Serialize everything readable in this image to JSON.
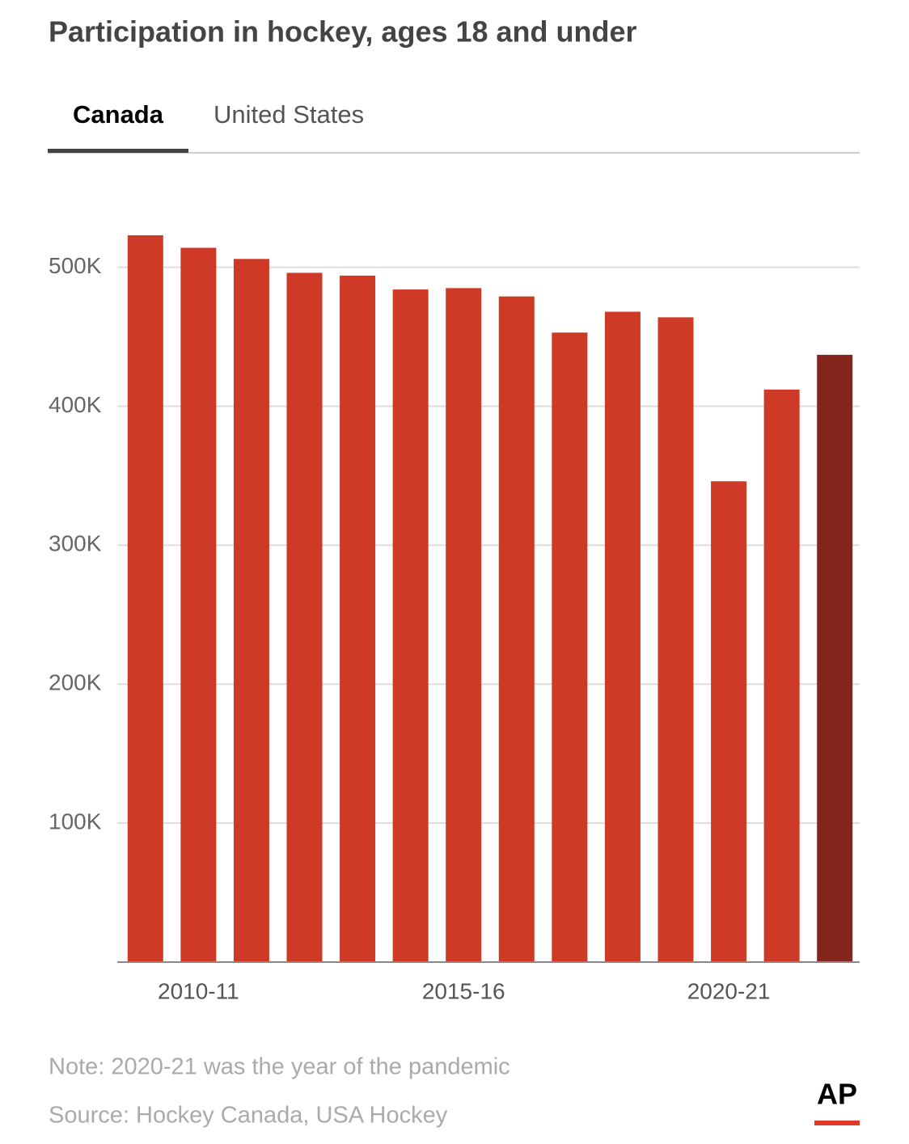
{
  "chart_data": {
    "type": "bar",
    "title": "Participation in hockey, ages 18 and under",
    "tabs": [
      "Canada",
      "United States"
    ],
    "active_tab": 0,
    "categories": [
      null,
      "2010-11",
      null,
      null,
      null,
      null,
      "2015-16",
      null,
      null,
      null,
      null,
      "2020-21",
      null,
      null
    ],
    "values": [
      523000,
      514000,
      506000,
      496000,
      494000,
      484000,
      485000,
      479000,
      453000,
      468000,
      464000,
      346000,
      412000,
      437000
    ],
    "colors": [
      "#cf3a27",
      "#cf3a27",
      "#cf3a27",
      "#cf3a27",
      "#cf3a27",
      "#cf3a27",
      "#cf3a27",
      "#cf3a27",
      "#cf3a27",
      "#cf3a27",
      "#cf3a27",
      "#cf3a27",
      "#cf3a27",
      "#85261e"
    ],
    "ylim": [
      0,
      530000
    ],
    "yticks": [
      {
        "value": 100000,
        "label": "100K"
      },
      {
        "value": 200000,
        "label": "200K"
      },
      {
        "value": 300000,
        "label": "300K"
      },
      {
        "value": 400000,
        "label": "400K"
      },
      {
        "value": 500000,
        "label": "500K"
      }
    ],
    "grid": true,
    "note": "Note: 2020-21 was the year of the pandemic",
    "source": "Source: Hockey Canada, USA Hockey",
    "logo": "AP"
  }
}
